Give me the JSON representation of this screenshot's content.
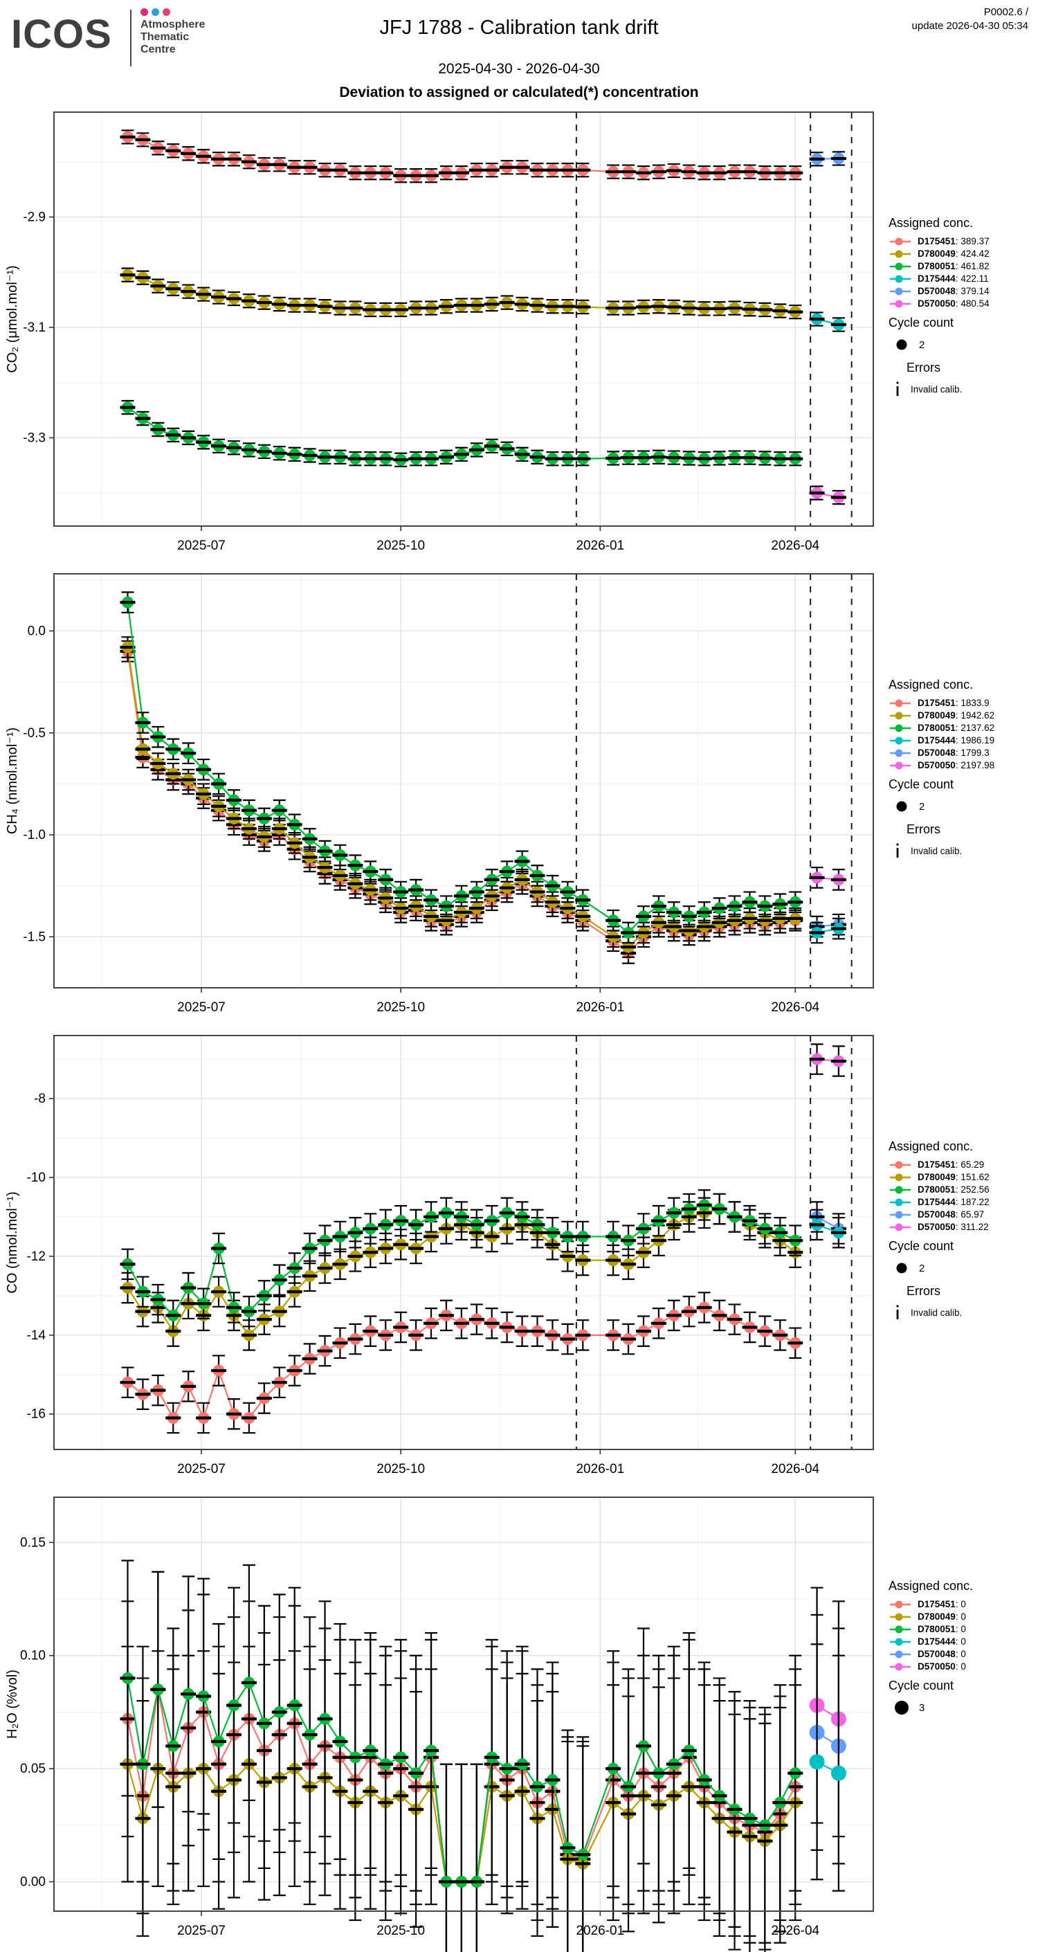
{
  "header": {
    "logo_text": "ICOS",
    "org_lines": [
      "Atmosphere",
      "Thematic",
      "Centre"
    ],
    "logo_dot_colors": [
      "#e5247c",
      "#2f9fd8",
      "#e8426c"
    ],
    "title": "JFJ 1788 - Calibration tank drift",
    "version": "P0002.6 /",
    "update_line": "update  2026-04-30 05:34",
    "date_range": "2025-04-30 - 2026-04-30",
    "deviation_heading": "Deviation to assigned or calculated(*) concentration"
  },
  "tank_colors": {
    "D175451": "#F8766D",
    "D780049": "#B79F00",
    "D780051": "#00BA38",
    "D175444": "#00BFC4",
    "D570048": "#619CFF",
    "D570050": "#F564E3"
  },
  "legend_common": {
    "assigned_title": "Assigned conc.",
    "cycle_title": "Cycle count",
    "errors_title": "Errors",
    "invalid_label": "Invalid calib."
  },
  "x_axis": {
    "domain_days": [
      -6,
      372
    ],
    "tick_days": [
      62,
      154,
      246,
      336
    ],
    "tick_labels": [
      "2025-07",
      "2025-10",
      "2026-01",
      "2026-04"
    ],
    "minor_days": [
      16,
      108,
      200,
      291
    ],
    "sample_days": [
      28,
      35,
      42,
      49,
      56,
      63,
      70,
      77,
      84,
      91,
      98,
      105,
      112,
      119,
      126,
      133,
      140,
      147,
      154,
      161,
      168,
      175,
      182,
      189,
      196,
      203,
      210,
      217,
      224,
      231,
      238,
      252,
      259,
      266,
      273,
      280,
      287,
      294,
      301,
      308,
      315,
      322,
      329,
      336
    ],
    "new_tank_days": [
      346,
      356
    ]
  },
  "chart_data": [
    {
      "key": "co2",
      "type": "line",
      "ylabel": "CO₂ (μmol.mol⁻¹)",
      "y_domain": [
        -3.46,
        -2.71
      ],
      "y_ticks": [
        -3.3,
        -3.1,
        -2.9
      ],
      "y_tick_labels": [
        "-3.3",
        "-3.1",
        "-2.9"
      ],
      "dashed_days": [
        235,
        343,
        362
      ],
      "error_half": 0.012,
      "point_radius": 8.5,
      "new_point_radius": 8.5,
      "new_point_bar": true,
      "series": [
        {
          "id": "D175451",
          "values": [
            -2.755,
            -2.76,
            -2.775,
            -2.78,
            -2.785,
            -2.79,
            -2.795,
            -2.795,
            -2.8,
            -2.805,
            -2.805,
            -2.81,
            -2.81,
            -2.815,
            -2.815,
            -2.82,
            -2.82,
            -2.82,
            -2.825,
            -2.825,
            -2.825,
            -2.82,
            -2.82,
            -2.815,
            -2.815,
            -2.81,
            -2.81,
            -2.815,
            -2.815,
            -2.815,
            -2.815,
            -2.818,
            -2.818,
            -2.82,
            -2.818,
            -2.816,
            -2.818,
            -2.82,
            -2.82,
            -2.818,
            -2.818,
            -2.82,
            -2.82,
            -2.82
          ]
        },
        {
          "id": "D780049",
          "values": [
            -3.005,
            -3.01,
            -3.025,
            -3.03,
            -3.035,
            -3.04,
            -3.045,
            -3.048,
            -3.052,
            -3.055,
            -3.058,
            -3.06,
            -3.06,
            -3.062,
            -3.065,
            -3.065,
            -3.068,
            -3.068,
            -3.068,
            -3.065,
            -3.065,
            -3.062,
            -3.06,
            -3.06,
            -3.058,
            -3.055,
            -3.058,
            -3.06,
            -3.062,
            -3.062,
            -3.063,
            -3.065,
            -3.065,
            -3.063,
            -3.062,
            -3.063,
            -3.065,
            -3.066,
            -3.066,
            -3.065,
            -3.067,
            -3.068,
            -3.07,
            -3.072
          ]
        },
        {
          "id": "D780051",
          "values": [
            -3.245,
            -3.265,
            -3.285,
            -3.295,
            -3.3,
            -3.308,
            -3.315,
            -3.318,
            -3.322,
            -3.325,
            -3.328,
            -3.33,
            -3.332,
            -3.335,
            -3.335,
            -3.338,
            -3.338,
            -3.338,
            -3.34,
            -3.338,
            -3.338,
            -3.335,
            -3.33,
            -3.322,
            -3.315,
            -3.32,
            -3.33,
            -3.335,
            -3.338,
            -3.338,
            -3.338,
            -3.337,
            -3.336,
            -3.336,
            -3.335,
            -3.336,
            -3.337,
            -3.338,
            -3.337,
            -3.336,
            -3.336,
            -3.337,
            -3.338,
            -3.338
          ]
        }
      ],
      "new_tanks": [
        {
          "id": "D570048",
          "values": [
            -2.795,
            -2.794
          ]
        },
        {
          "id": "D175444",
          "values": [
            -3.085,
            -3.095
          ]
        },
        {
          "id": "D570050",
          "values": [
            -3.4,
            -3.408
          ]
        }
      ],
      "legend": {
        "entries": [
          {
            "id": "D175451",
            "value": "389.37"
          },
          {
            "id": "D780049",
            "value": "424.42"
          },
          {
            "id": "D780051",
            "value": "461.82"
          },
          {
            "id": "D175444",
            "value": "422.11"
          },
          {
            "id": "D570048",
            "value": "379.14"
          },
          {
            "id": "D570050",
            "value": "480.54"
          }
        ],
        "cycle_count": "2",
        "show_errors": true
      }
    },
    {
      "key": "ch4",
      "type": "line",
      "ylabel": "CH₄ (nmol.mol⁻¹)",
      "y_domain": [
        -1.75,
        0.28
      ],
      "y_ticks": [
        -1.5,
        -1.0,
        -0.5,
        0.0
      ],
      "y_tick_labels": [
        "-1.5",
        "-1.0",
        "-0.5",
        "0.0"
      ],
      "dashed_days": [
        235,
        343,
        362
      ],
      "error_half": 0.05,
      "point_radius": 8.5,
      "new_point_radius": 8.5,
      "new_point_bar": true,
      "series": [
        {
          "id": "D175451",
          "values": [
            -0.1,
            -0.62,
            -0.68,
            -0.73,
            -0.75,
            -0.82,
            -0.88,
            -0.95,
            -1.0,
            -1.03,
            -1.0,
            -1.07,
            -1.13,
            -1.19,
            -1.22,
            -1.26,
            -1.29,
            -1.33,
            -1.38,
            -1.37,
            -1.42,
            -1.44,
            -1.4,
            -1.38,
            -1.32,
            -1.28,
            -1.24,
            -1.3,
            -1.35,
            -1.38,
            -1.42,
            -1.52,
            -1.58,
            -1.5,
            -1.45,
            -1.47,
            -1.49,
            -1.47,
            -1.45,
            -1.44,
            -1.43,
            -1.44,
            -1.43,
            -1.42
          ]
        },
        {
          "id": "D780049",
          "values": [
            -0.08,
            -0.58,
            -0.65,
            -0.7,
            -0.73,
            -0.8,
            -0.86,
            -0.92,
            -0.97,
            -1.01,
            -0.97,
            -1.04,
            -1.11,
            -1.16,
            -1.2,
            -1.24,
            -1.27,
            -1.31,
            -1.36,
            -1.35,
            -1.4,
            -1.42,
            -1.38,
            -1.36,
            -1.3,
            -1.26,
            -1.22,
            -1.28,
            -1.33,
            -1.36,
            -1.4,
            -1.5,
            -1.55,
            -1.48,
            -1.43,
            -1.45,
            -1.47,
            -1.45,
            -1.43,
            -1.42,
            -1.41,
            -1.42,
            -1.41,
            -1.41
          ]
        },
        {
          "id": "D780051",
          "values": [
            0.14,
            -0.45,
            -0.52,
            -0.58,
            -0.6,
            -0.68,
            -0.75,
            -0.83,
            -0.88,
            -0.92,
            -0.88,
            -0.95,
            -1.02,
            -1.08,
            -1.1,
            -1.15,
            -1.18,
            -1.22,
            -1.28,
            -1.27,
            -1.32,
            -1.35,
            -1.3,
            -1.28,
            -1.22,
            -1.18,
            -1.13,
            -1.2,
            -1.25,
            -1.28,
            -1.32,
            -1.42,
            -1.48,
            -1.4,
            -1.35,
            -1.38,
            -1.4,
            -1.38,
            -1.36,
            -1.35,
            -1.33,
            -1.35,
            -1.34,
            -1.33
          ]
        }
      ],
      "new_tanks": [
        {
          "id": "D570050",
          "values": [
            -1.21,
            -1.22
          ]
        },
        {
          "id": "D570048",
          "values": [
            -1.45,
            -1.44
          ]
        },
        {
          "id": "D175444",
          "values": [
            -1.48,
            -1.46
          ]
        }
      ],
      "legend": {
        "entries": [
          {
            "id": "D175451",
            "value": "1833.9"
          },
          {
            "id": "D780049",
            "value": "1942.62"
          },
          {
            "id": "D780051",
            "value": "2137.62"
          },
          {
            "id": "D175444",
            "value": "1986.19"
          },
          {
            "id": "D570048",
            "value": "1799.3"
          },
          {
            "id": "D570050",
            "value": "2197.98"
          }
        ],
        "cycle_count": "2",
        "show_errors": true
      }
    },
    {
      "key": "co",
      "type": "line",
      "ylabel": "CO (nmol.mol⁻¹)",
      "y_domain": [
        -16.9,
        -6.4
      ],
      "y_ticks": [
        -16,
        -14,
        -12,
        -10,
        -8
      ],
      "y_tick_labels": [
        "-16",
        "-14",
        "-12",
        "-10",
        "-8"
      ],
      "dashed_days": [
        235,
        343,
        362
      ],
      "error_half": 0.38,
      "point_radius": 8.5,
      "new_point_radius": 8.5,
      "new_point_bar": true,
      "series": [
        {
          "id": "D175451",
          "values": [
            -15.2,
            -15.5,
            -15.4,
            -16.1,
            -15.3,
            -16.1,
            -14.9,
            -16.0,
            -16.1,
            -15.6,
            -15.2,
            -14.9,
            -14.6,
            -14.4,
            -14.2,
            -14.1,
            -13.9,
            -14.0,
            -13.8,
            -14.0,
            -13.7,
            -13.5,
            -13.7,
            -13.6,
            -13.7,
            -13.8,
            -13.9,
            -13.9,
            -14.0,
            -14.1,
            -14.0,
            -14.0,
            -14.1,
            -13.9,
            -13.7,
            -13.5,
            -13.4,
            -13.3,
            -13.5,
            -13.6,
            -13.8,
            -13.9,
            -14.0,
            -14.2
          ]
        },
        {
          "id": "D780049",
          "values": [
            -12.8,
            -13.4,
            -13.3,
            -13.9,
            -13.2,
            -13.5,
            -12.9,
            -13.5,
            -14.0,
            -13.6,
            -13.4,
            -12.9,
            -12.5,
            -12.3,
            -12.2,
            -12.0,
            -11.9,
            -11.8,
            -11.7,
            -11.8,
            -11.5,
            -11.3,
            -11.2,
            -11.4,
            -11.5,
            -11.3,
            -11.2,
            -11.4,
            -11.7,
            -12.0,
            -12.1,
            -12.1,
            -12.2,
            -11.9,
            -11.6,
            -11.2,
            -11.0,
            -10.9,
            -10.8,
            -11.0,
            -11.2,
            -11.4,
            -11.6,
            -11.9
          ]
        },
        {
          "id": "D780051",
          "values": [
            -12.2,
            -12.9,
            -13.1,
            -13.5,
            -12.8,
            -13.2,
            -11.8,
            -13.3,
            -13.4,
            -13.0,
            -12.6,
            -12.3,
            -11.8,
            -11.6,
            -11.5,
            -11.4,
            -11.3,
            -11.2,
            -11.1,
            -11.2,
            -11.0,
            -10.9,
            -11.0,
            -11.2,
            -11.1,
            -10.9,
            -11.0,
            -11.2,
            -11.4,
            -11.5,
            -11.5,
            -11.5,
            -11.6,
            -11.3,
            -11.1,
            -10.9,
            -10.8,
            -10.7,
            -10.8,
            -11.0,
            -11.1,
            -11.3,
            -11.4,
            -11.6
          ]
        }
      ],
      "new_tanks": [
        {
          "id": "D570050",
          "values": [
            -7.0,
            -7.05
          ]
        },
        {
          "id": "D570048",
          "values": [
            -11.0,
            -11.3
          ]
        },
        {
          "id": "D175444",
          "values": [
            -11.2,
            -11.4
          ]
        }
      ],
      "legend": {
        "entries": [
          {
            "id": "D175451",
            "value": "65.29"
          },
          {
            "id": "D780049",
            "value": "151.62"
          },
          {
            "id": "D780051",
            "value": "252.56"
          },
          {
            "id": "D175444",
            "value": "187.22"
          },
          {
            "id": "D570048",
            "value": "65.97"
          },
          {
            "id": "D570050",
            "value": "311.22"
          }
        ],
        "cycle_count": "2",
        "show_errors": true
      }
    },
    {
      "key": "h2o",
      "type": "line",
      "ylabel": "H₂O (%vol)",
      "y_domain": [
        -0.013,
        0.17
      ],
      "y_ticks": [
        0.0,
        0.05,
        0.1,
        0.15
      ],
      "y_tick_labels": [
        "0.00",
        "0.05",
        "0.10",
        "0.15"
      ],
      "dashed_days": [],
      "error_half": 0.052,
      "point_radius": 8.5,
      "new_point_radius": 11,
      "new_point_bar": false,
      "series": [
        {
          "id": "D175451",
          "values": [
            0.072,
            0.038,
            0.085,
            0.048,
            0.068,
            0.075,
            0.052,
            0.065,
            0.072,
            0.058,
            0.065,
            0.07,
            0.052,
            0.06,
            0.055,
            0.045,
            0.055,
            0.048,
            0.05,
            0.042,
            0.055,
            0.0,
            0.0,
            0.0,
            0.052,
            0.045,
            0.05,
            0.035,
            0.04,
            0.012,
            0.01,
            0.045,
            0.038,
            0.048,
            0.042,
            0.048,
            0.055,
            0.042,
            0.035,
            0.028,
            0.025,
            0.022,
            0.03,
            0.042
          ]
        },
        {
          "id": "D780049",
          "values": [
            0.052,
            0.028,
            0.05,
            0.042,
            0.048,
            0.05,
            0.04,
            0.045,
            0.052,
            0.044,
            0.046,
            0.05,
            0.042,
            0.046,
            0.04,
            0.035,
            0.04,
            0.035,
            0.038,
            0.032,
            0.042,
            0.0,
            0.0,
            0.0,
            0.042,
            0.038,
            0.04,
            0.028,
            0.032,
            0.01,
            0.008,
            0.035,
            0.03,
            0.038,
            0.034,
            0.038,
            0.042,
            0.035,
            0.028,
            0.022,
            0.02,
            0.018,
            0.025,
            0.035
          ]
        },
        {
          "id": "D780051",
          "values": [
            0.09,
            0.052,
            0.085,
            0.06,
            0.083,
            0.082,
            0.062,
            0.078,
            0.088,
            0.07,
            0.075,
            0.078,
            0.065,
            0.072,
            0.062,
            0.055,
            0.058,
            0.052,
            0.055,
            0.048,
            0.058,
            0.0,
            0.0,
            0.0,
            0.055,
            0.05,
            0.052,
            0.042,
            0.045,
            0.015,
            0.012,
            0.05,
            0.042,
            0.06,
            0.048,
            0.052,
            0.058,
            0.045,
            0.038,
            0.032,
            0.028,
            0.025,
            0.035,
            0.048
          ]
        }
      ],
      "new_tanks": [
        {
          "id": "D570050",
          "values": [
            0.078,
            0.072
          ]
        },
        {
          "id": "D570048",
          "values": [
            0.066,
            0.06
          ]
        },
        {
          "id": "D175444",
          "values": [
            0.053,
            0.048
          ]
        }
      ],
      "legend": {
        "entries": [
          {
            "id": "D175451",
            "value": "0"
          },
          {
            "id": "D780049",
            "value": "0"
          },
          {
            "id": "D780051",
            "value": "0"
          },
          {
            "id": "D175444",
            "value": "0"
          },
          {
            "id": "D570048",
            "value": "0"
          },
          {
            "id": "D570050",
            "value": "0"
          }
        ],
        "cycle_count": "3",
        "show_errors": false
      }
    }
  ]
}
